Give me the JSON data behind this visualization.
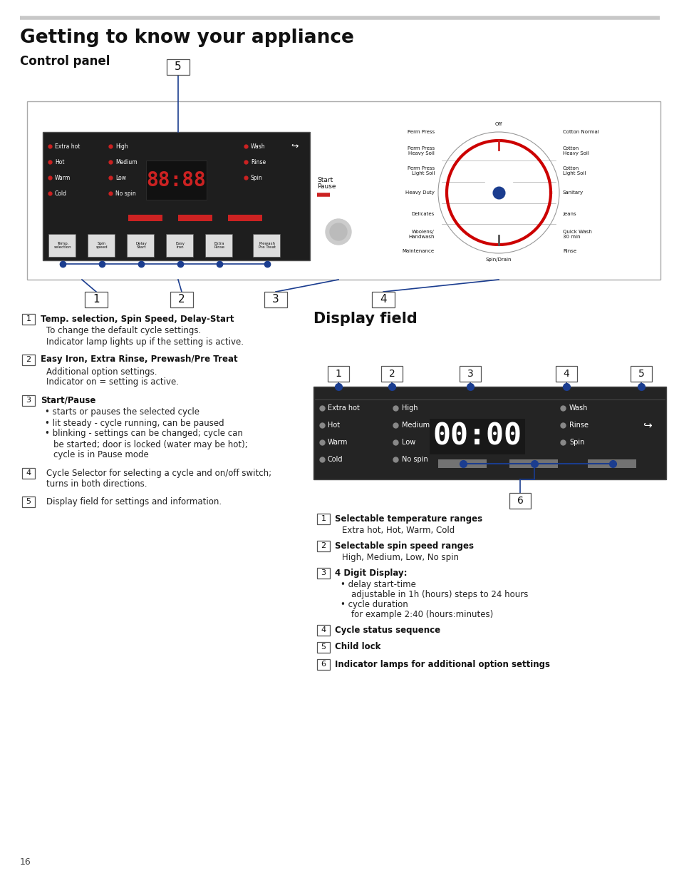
{
  "title": "Getting to know your appliance",
  "section1_title": "Control panel",
  "section2_title": "Display field",
  "page_number": "16",
  "blue": "#1b3d8f",
  "red_dot": "#cc2222",
  "gray_dot": "#888888",
  "panel_dark": "#1e1e1e",
  "desc_left": [
    {
      "num": "1",
      "bold": "Temp. selection, Spin Speed, Delay-Start",
      "lines": [
        "To change the default cycle settings.",
        "Indicator lamp lights up if the setting is active."
      ],
      "bullets": []
    },
    {
      "num": "2",
      "bold": "Easy Iron, Extra Rinse, Prewash/Pre Treat",
      "lines": [
        "Additional option settings.",
        "Indicator on = setting is active."
      ],
      "bullets": []
    },
    {
      "num": "3",
      "bold": "Start/Pause",
      "lines": [],
      "bullets": [
        "starts or pauses the selected cycle",
        "lit steady - cycle running, can be paused",
        "blinking - settings can be changed; cycle can\nbe started; door is locked (water may be hot);\ncycle is in Pause mode"
      ]
    },
    {
      "num": "4",
      "bold": "",
      "lines": [
        "Cycle Selector for selecting a cycle and on/off switch;",
        "turns in both directions."
      ],
      "bullets": []
    },
    {
      "num": "5",
      "bold": "",
      "lines": [
        "Display field for settings and information."
      ],
      "bullets": []
    }
  ],
  "desc_right": [
    {
      "num": "1",
      "bold": "Selectable temperature ranges",
      "lines": [
        "Extra hot, Hot, Warm, Cold"
      ],
      "bullets": []
    },
    {
      "num": "2",
      "bold": "Selectable spin speed ranges",
      "lines": [
        "High, Medium, Low, No spin"
      ],
      "bullets": []
    },
    {
      "num": "3",
      "bold": "4 Digit Display:",
      "lines": [],
      "bullets": [
        "delay start-time",
        "adjustable in 1h (hours) steps to 24 hours",
        "cycle duration",
        "for example 2:40 (hours:minutes)"
      ]
    },
    {
      "num": "4",
      "bold": "Cycle status sequence",
      "lines": [],
      "bullets": []
    },
    {
      "num": "5",
      "bold": "Child lock",
      "lines": [],
      "bullets": []
    },
    {
      "num": "6",
      "bold": "Indicator lamps for additional option settings",
      "lines": [],
      "bullets": []
    }
  ],
  "cp_left_labels": [
    "Extra hot",
    "Hot",
    "Warm",
    "Cold"
  ],
  "cp_mid_labels": [
    "High",
    "Medium",
    "Low",
    "No spin"
  ],
  "cp_right_labels": [
    "Wash",
    "Rinse",
    "Spin"
  ],
  "cp_btn_labels": [
    "Temp.\nselection",
    "Spin\nspeed",
    "Delay\nStart",
    "Easy\nIron",
    "Extra\nRinse",
    "Prewash\nPre Treat"
  ],
  "cycle_left": [
    "Perm Press",
    "Perm Press\nHeavy Soil",
    "Perm Press\nLight Soil",
    "Heavy Duty",
    "Delicates",
    "Woolens/\nHandwash",
    "Maintenance"
  ],
  "cycle_right": [
    "Cotton Normal",
    "Cotton\nHeavy Soil",
    "Cotton\nLight Soil",
    "Sanitary",
    "Jeans",
    "Quick Wash\n30 min",
    "Rinse"
  ],
  "dp_left_labels": [
    "Extra hot",
    "Hot",
    "Warm",
    "Cold"
  ],
  "dp_mid_labels": [
    "High",
    "Medium",
    "Low",
    "No spin"
  ],
  "dp_right_labels": [
    "Wash",
    "Rinse",
    "Spin"
  ]
}
